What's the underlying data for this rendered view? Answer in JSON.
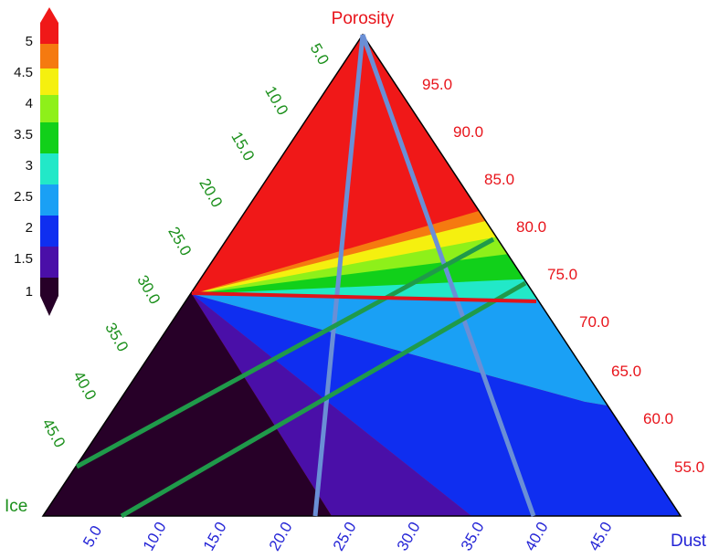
{
  "colors": {
    "porosity": "#e8141b",
    "ice": "#1a8f1a",
    "dust": "#2424d6",
    "overlay_blue": "#6a8fd6",
    "overlay_green": "#1f9a4a",
    "overlay_red": "#e0141b"
  },
  "axes": {
    "top_label": "Porosity",
    "left_label": "Ice",
    "right_label": "Dust"
  },
  "colorbar": {
    "labels": [
      "1",
      "1.5",
      "2",
      "2.5",
      "3",
      "3.5",
      "4",
      "4.5",
      "5"
    ],
    "colors": [
      "#270028",
      "#4a0fa8",
      "#0f2ef0",
      "#1aa0f5",
      "#22e8c8",
      "#11d01a",
      "#8ef01a",
      "#f5f00f",
      "#f57a10",
      "#f01818"
    ]
  },
  "ticks": {
    "porosity": [
      "95.0",
      "90.0",
      "85.0",
      "80.0",
      "75.0",
      "70.0",
      "65.0",
      "60.0",
      "55.0"
    ],
    "ice": [
      "5.0",
      "10.0",
      "15.0",
      "20.0",
      "25.0",
      "30.0",
      "35.0",
      "40.0",
      "45.0"
    ],
    "dust": [
      "5.0",
      "10.0",
      "15.0",
      "20.0",
      "25.0",
      "30.0",
      "35.0",
      "40.0",
      "45.0"
    ]
  }
}
